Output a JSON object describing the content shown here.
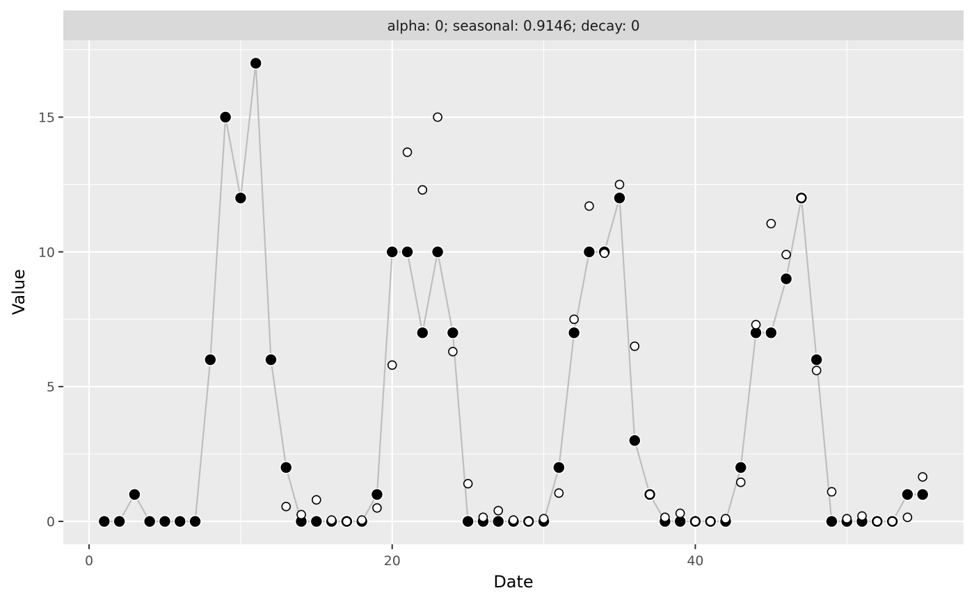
{
  "chart_data": {
    "type": "scatter",
    "strip_title": "alpha: 0; seasonal: 0.9146; decay: 0",
    "xlabel": "Date",
    "ylabel": "Value",
    "xlim": [
      -1.7,
      57.7
    ],
    "ylim": [
      -0.85,
      17.85
    ],
    "x_ticks": [
      0,
      20,
      40
    ],
    "y_ticks": [
      0,
      5,
      10,
      15
    ],
    "grid": true,
    "colors": {
      "panel_bg": "#ebebeb",
      "grid": "#ffffff",
      "strip_bg": "#d9d9d9",
      "line": "#bebebe",
      "actual_fill": "#000000",
      "fitted_fill": "#ffffff"
    },
    "series": [
      {
        "style": "actual",
        "x": [
          1,
          2,
          3,
          4,
          5,
          6,
          7,
          8,
          9,
          10,
          11,
          12,
          13,
          14,
          15,
          16,
          17,
          18,
          19,
          20,
          21,
          22,
          23,
          24,
          25,
          26,
          27,
          28,
          29,
          30,
          31,
          32,
          33,
          34,
          35,
          36,
          37,
          38,
          39,
          40,
          41,
          42,
          43,
          44,
          45,
          46,
          47,
          48,
          49,
          50,
          51,
          52,
          53,
          54,
          55
        ],
        "y": [
          0,
          0,
          1,
          0,
          0,
          0,
          0,
          6,
          15,
          12,
          17,
          6,
          2,
          0,
          0,
          0,
          0,
          0,
          1,
          10,
          10,
          7,
          10,
          7,
          0,
          0,
          0,
          0,
          0,
          0,
          2,
          7,
          10,
          10,
          12,
          3,
          1,
          0,
          0,
          0,
          0,
          0,
          2,
          7,
          7,
          9,
          12,
          6,
          0,
          0,
          0,
          0,
          0,
          1,
          1
        ]
      },
      {
        "style": "fitted",
        "x": [
          13,
          14,
          15,
          16,
          17,
          18,
          19,
          20,
          21,
          22,
          23,
          24,
          25,
          26,
          27,
          28,
          29,
          30,
          31,
          32,
          33,
          34,
          35,
          36,
          37,
          38,
          39,
          40,
          41,
          42,
          43,
          44,
          45,
          46,
          47,
          48,
          49,
          50,
          51,
          52,
          53,
          54,
          55
        ],
        "y": [
          0.55,
          0.25,
          0.8,
          0.05,
          0.0,
          0.05,
          0.5,
          5.8,
          13.7,
          12.3,
          15.0,
          6.3,
          1.4,
          0.15,
          0.4,
          0.05,
          0.0,
          0.1,
          1.05,
          7.5,
          11.7,
          9.95,
          12.5,
          6.5,
          1.0,
          0.15,
          0.3,
          0.0,
          0.0,
          0.1,
          1.45,
          7.3,
          11.05,
          9.9,
          12.0,
          5.6,
          1.1,
          0.1,
          0.2,
          0.0,
          0.0,
          0.15,
          1.65
        ]
      }
    ]
  }
}
